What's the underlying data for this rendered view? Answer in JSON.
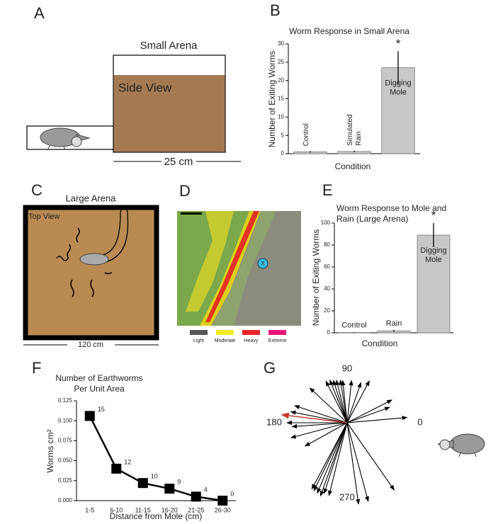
{
  "panel_labels": [
    "A",
    "B",
    "C",
    "D",
    "E",
    "F",
    "G"
  ],
  "panel_a": {
    "title": "Small Arena",
    "view": "Side View",
    "scale": "25 cm"
  },
  "panel_c": {
    "title": "Large Arena",
    "view": "Top View",
    "scale": "120 cm"
  },
  "panel_d": {
    "marker": "X",
    "legend": [
      {
        "label": "Light",
        "color": "#555555"
      },
      {
        "label": "Moderate",
        "color": "#f0ea1e"
      },
      {
        "label": "Heavy",
        "color": "#e8242a"
      },
      {
        "label": "Extreme",
        "color": "#e8157a"
      }
    ]
  },
  "chart_data": [
    {
      "type": "bar",
      "title": "Worm Response in Small Arena",
      "ylabel": "Number of Exiting Worms",
      "xlabel": "Condition",
      "categories": [
        "Control",
        "Simulated Rain",
        "Digging Mole"
      ],
      "values": [
        0.5,
        0.6,
        23.5
      ],
      "errors": [
        0.2,
        0.2,
        4.5
      ],
      "color": "#c8c8c8",
      "ylim": [
        0,
        30
      ],
      "yticks": [
        0,
        5,
        10,
        15,
        20,
        25,
        30
      ],
      "annotation": "*"
    },
    {
      "type": "bar",
      "title": "Worm Response to Mole and Rain (Large Arena)",
      "ylabel": "Number of Exiting Worms",
      "xlabel": "Condition",
      "categories": [
        "Control",
        "Rain",
        "Digging Mole"
      ],
      "values": [
        0.3,
        1.8,
        89
      ],
      "errors": [
        0.3,
        0.8,
        11
      ],
      "color": "#c8c8c8",
      "ylim": [
        0,
        100
      ],
      "yticks": [
        0,
        20,
        40,
        60,
        80,
        100
      ],
      "annotation": "*"
    },
    {
      "type": "line",
      "title": "Number of Earthworms Per Unit Area",
      "ylabel": "Worms cm²",
      "xlabel": "Distance from Mole (cm)",
      "categories": [
        "1-5",
        "6-10",
        "11-15",
        "16-20",
        "21-25",
        "26-30"
      ],
      "values": [
        0.106,
        0.04,
        0.022,
        0.015,
        0.005,
        0.0
      ],
      "point_labels": [
        15,
        12,
        10,
        9,
        4,
        0
      ],
      "color": "#000000",
      "ylim": [
        0,
        0.125
      ],
      "yticks": [
        {
          "value": 0,
          "label": "0.000"
        },
        {
          "value": 0.025,
          "label": "0.025"
        },
        {
          "value": 0.05,
          "label": "0.050"
        },
        {
          "value": 0.075,
          "label": "0.075"
        },
        {
          "value": 0.1,
          "label": "0.100"
        },
        {
          "value": 0.125,
          "label": "0.125"
        }
      ]
    },
    {
      "type": "vector",
      "angle_labels": [
        0,
        90,
        180,
        270
      ],
      "vectors": {
        "color": "#000000",
        "angles": [
          137,
          117,
          112,
          108,
          104,
          99,
          96,
          84,
          71,
          62,
          27,
          5,
          162,
          169,
          180,
          184,
          195,
          209,
          242,
          244,
          247,
          250,
          252,
          256,
          278,
          285,
          305,
          20
        ],
        "lengths": [
          72,
          66,
          65,
          63,
          62,
          61,
          60,
          60,
          60,
          67,
          71,
          85,
          78,
          81,
          85,
          78,
          82,
          68,
          106,
          107,
          108,
          110,
          105,
          106,
          116,
          115,
          116,
          64
        ]
      },
      "mean_vector": {
        "color": "#c0392b",
        "angle": 173,
        "length": 93
      }
    }
  ]
}
